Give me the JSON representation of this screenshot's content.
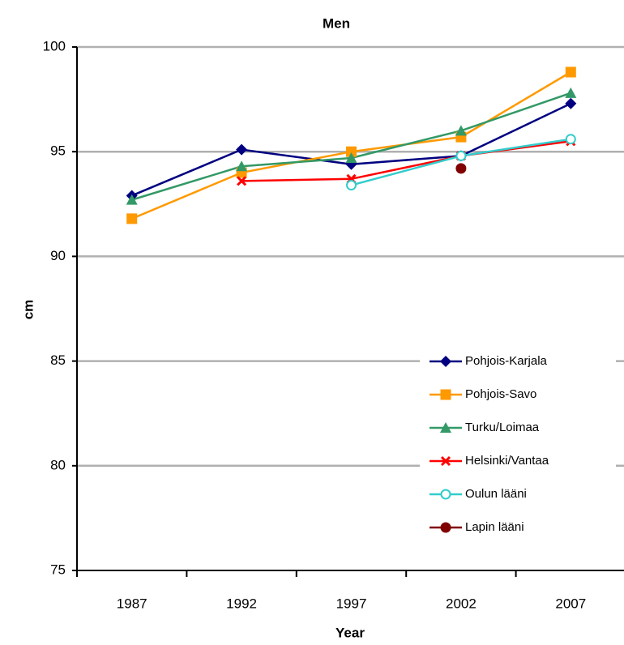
{
  "chart_data": {
    "type": "line",
    "title": "Men",
    "xlabel": "Year",
    "ylabel": "cm",
    "categories": [
      "1987",
      "1992",
      "1997",
      "2002",
      "2007"
    ],
    "series": [
      {
        "name": "Pohjois-Karjala",
        "color": "#000080",
        "marker": "diamond",
        "values": [
          92.9,
          95.1,
          94.4,
          94.8,
          97.3
        ]
      },
      {
        "name": "Pohjois-Savo",
        "color": "#ff9900",
        "marker": "square",
        "values": [
          91.8,
          94.0,
          95.0,
          95.7,
          98.8
        ]
      },
      {
        "name": "Turku/Loimaa",
        "color": "#339966",
        "marker": "triangle",
        "values": [
          92.7,
          94.3,
          94.7,
          96.0,
          97.8
        ]
      },
      {
        "name": "Helsinki/Vantaa",
        "color": "#ff0000",
        "marker": "x",
        "values": [
          null,
          93.6,
          93.7,
          94.8,
          95.5
        ]
      },
      {
        "name": "Oulun lääni",
        "color": "#33cccc",
        "marker": "circle-open",
        "values": [
          null,
          null,
          93.4,
          94.8,
          95.6
        ]
      },
      {
        "name": "Lapin lääni",
        "color": "#800000",
        "marker": "circle",
        "values": [
          null,
          null,
          null,
          94.2,
          null
        ]
      }
    ],
    "ylim": [
      75,
      100
    ],
    "yticks": [
      75,
      80,
      85,
      90,
      95,
      100
    ],
    "grid": true,
    "legend": "lower right"
  }
}
